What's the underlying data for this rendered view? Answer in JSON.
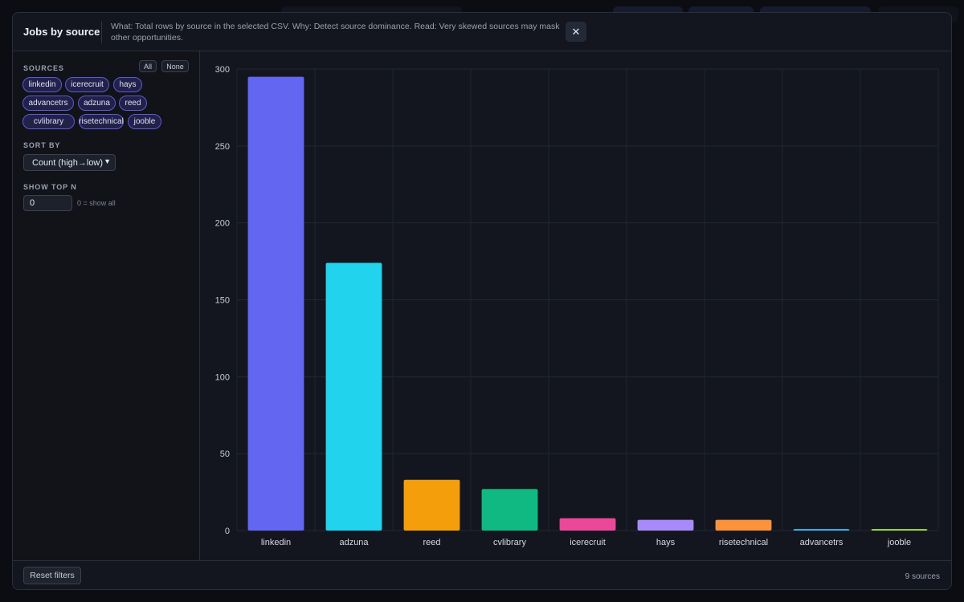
{
  "modal": {
    "title": "Jobs by source",
    "description": "What: Total rows by source in the selected CSV. Why: Detect source dominance. Read: Very skewed sources may mask other opportunities.",
    "close_label": "✕"
  },
  "sidebar": {
    "sources_label": "SOURCES",
    "all_label": "All",
    "none_label": "None",
    "chips": [
      "linkedin",
      "icerecruit",
      "hays",
      "advancetrs",
      "adzuna",
      "reed",
      "cvlibrary",
      "risetechnical",
      "jooble"
    ],
    "sort_label": "SORT BY",
    "sort_value": "Count (high→low)",
    "topn_label": "SHOW TOP N",
    "topn_value": "0",
    "topn_hint": "0 = show all"
  },
  "footer": {
    "reset_label": "Reset filters",
    "count_text": "9 sources"
  },
  "chart_data": {
    "type": "bar",
    "categories": [
      "linkedin",
      "adzuna",
      "reed",
      "cvlibrary",
      "icerecruit",
      "hays",
      "risetechnical",
      "advancetrs",
      "jooble"
    ],
    "values": [
      295,
      174,
      33,
      27,
      8,
      7,
      7,
      1,
      1
    ],
    "colors": [
      "#6366f1",
      "#22d3ee",
      "#f59e0b",
      "#10b981",
      "#ec4899",
      "#a78bfa",
      "#fb923c",
      "#38bdf8",
      "#a3e635"
    ],
    "yticks": [
      0,
      50,
      100,
      150,
      200,
      250,
      300
    ],
    "ylim": [
      0,
      300
    ],
    "grid": true
  }
}
